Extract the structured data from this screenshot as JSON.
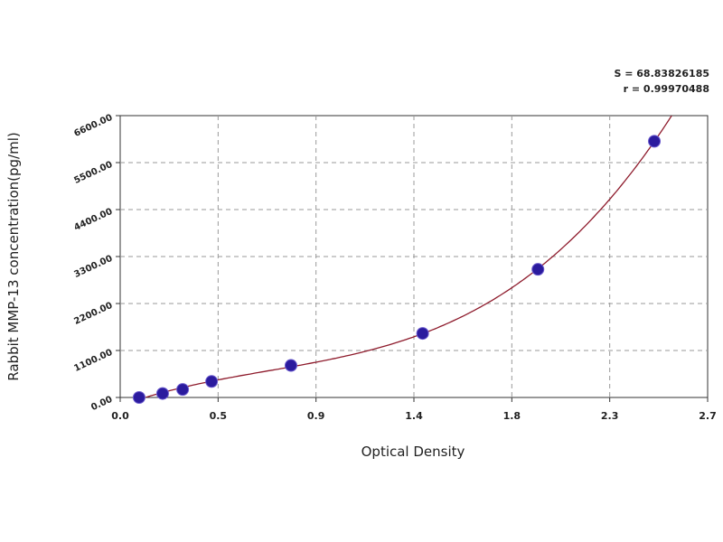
{
  "chart_data": {
    "type": "scatter",
    "annotations": [
      "S = 68.83826185",
      "r = 0.99970488"
    ],
    "xlabel": "Optical Density",
    "ylabel": "Rabbit MMP-13 concentration(pg/ml)",
    "series": [
      {
        "color": "#2b1b9e",
        "x": [
          0.087,
          0.195,
          0.287,
          0.42,
          0.785,
          1.39,
          1.92,
          2.455
        ],
        "values": [
          0,
          93.75,
          187.5,
          375,
          750,
          1500,
          3000,
          6000
        ]
      }
    ],
    "fit_color": "#8e1b2c",
    "xlim": [
      0,
      2.7
    ],
    "xticks": [
      {
        "value": 0,
        "label": "0.0"
      },
      {
        "value": 0.45,
        "label": "0.5"
      },
      {
        "value": 0.9,
        "label": "0.9"
      },
      {
        "value": 1.35,
        "label": "1.4"
      },
      {
        "value": 1.8,
        "label": "1.8"
      },
      {
        "value": 2.25,
        "label": "2.3"
      },
      {
        "value": 2.7,
        "label": "2.7"
      }
    ],
    "ylim": [
      0,
      6600
    ],
    "yticks": [
      {
        "value": 0,
        "label": "0.00"
      },
      {
        "value": 1100,
        "label": "1100.00"
      },
      {
        "value": 2200,
        "label": "2200.00"
      },
      {
        "value": 3300,
        "label": "3300.00"
      },
      {
        "value": 4400,
        "label": "4400.00"
      },
      {
        "value": 5500,
        "label": "5500.00"
      },
      {
        "value": 6600,
        "label": "6600.00"
      }
    ],
    "grid": true
  }
}
